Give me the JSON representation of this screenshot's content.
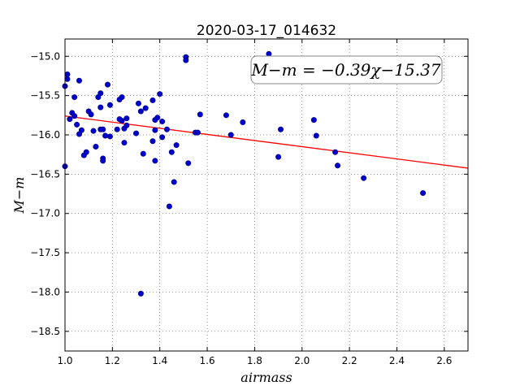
{
  "chart_data": {
    "type": "scatter",
    "title": "2020-03-17_014632",
    "xlabel": "airmass",
    "ylabel": "M−m",
    "xlim": [
      1.0,
      2.7
    ],
    "ylim": [
      -18.75,
      -14.78
    ],
    "xticks": [
      1.0,
      1.2,
      1.4,
      1.6,
      1.8,
      2.0,
      2.2,
      2.4,
      2.6
    ],
    "xtick_labels": [
      "1.0",
      "1.2",
      "1.4",
      "1.6",
      "1.8",
      "2.0",
      "2.2",
      "2.4",
      "2.6"
    ],
    "yticks": [
      -15.0,
      -15.5,
      -16.0,
      -16.5,
      -17.0,
      -17.5,
      -18.0,
      -18.5
    ],
    "ytick_labels": [
      "−15.0",
      "−15.5",
      "−16.0",
      "−16.5",
      "−17.0",
      "−17.5",
      "−18.0",
      "−18.5"
    ],
    "grid": true,
    "annotation": "M−m = −0.39χ−15.37",
    "fit": {
      "slope": -0.39,
      "intercept": -15.37,
      "color": "#ff0000"
    },
    "point_color": "#0000cc",
    "points": [
      [
        1.0,
        -15.38
      ],
      [
        1.01,
        -15.23
      ],
      [
        1.01,
        -15.29
      ],
      [
        1.0,
        -16.4
      ],
      [
        1.02,
        -15.8
      ],
      [
        1.03,
        -15.72
      ],
      [
        1.04,
        -15.76
      ],
      [
        1.04,
        -15.52
      ],
      [
        1.05,
        -15.87
      ],
      [
        1.06,
        -15.99
      ],
      [
        1.06,
        -15.31
      ],
      [
        1.07,
        -15.94
      ],
      [
        1.08,
        -16.26
      ],
      [
        1.09,
        -16.22
      ],
      [
        1.1,
        -15.7
      ],
      [
        1.11,
        -15.74
      ],
      [
        1.12,
        -15.95
      ],
      [
        1.13,
        -16.15
      ],
      [
        1.14,
        -15.52
      ],
      [
        1.15,
        -15.47
      ],
      [
        1.15,
        -15.65
      ],
      [
        1.15,
        -15.93
      ],
      [
        1.16,
        -16.3
      ],
      [
        1.16,
        -16.33
      ],
      [
        1.16,
        -15.93
      ],
      [
        1.17,
        -16.01
      ],
      [
        1.18,
        -15.36
      ],
      [
        1.19,
        -15.62
      ],
      [
        1.19,
        -16.02
      ],
      [
        1.22,
        -15.93
      ],
      [
        1.23,
        -15.55
      ],
      [
        1.24,
        -15.52
      ],
      [
        1.24,
        -15.82
      ],
      [
        1.23,
        -15.8
      ],
      [
        1.25,
        -16.1
      ],
      [
        1.25,
        -15.92
      ],
      [
        1.26,
        -15.79
      ],
      [
        1.26,
        -15.88
      ],
      [
        1.3,
        -15.98
      ],
      [
        1.31,
        -15.6
      ],
      [
        1.32,
        -15.7
      ],
      [
        1.33,
        -16.24
      ],
      [
        1.34,
        -15.66
      ],
      [
        1.32,
        -18.02
      ],
      [
        1.37,
        -15.56
      ],
      [
        1.37,
        -16.08
      ],
      [
        1.38,
        -15.81
      ],
      [
        1.38,
        -15.94
      ],
      [
        1.38,
        -16.33
      ],
      [
        1.39,
        -15.78
      ],
      [
        1.4,
        -15.48
      ],
      [
        1.41,
        -15.83
      ],
      [
        1.41,
        -16.03
      ],
      [
        1.43,
        -15.93
      ],
      [
        1.44,
        -16.91
      ],
      [
        1.45,
        -16.22
      ],
      [
        1.46,
        -16.6
      ],
      [
        1.47,
        -16.13
      ],
      [
        1.51,
        -15.01
      ],
      [
        1.51,
        -15.05
      ],
      [
        1.52,
        -16.36
      ],
      [
        1.55,
        -15.97
      ],
      [
        1.56,
        -15.97
      ],
      [
        1.57,
        -15.74
      ],
      [
        1.68,
        -15.75
      ],
      [
        1.7,
        -16.0
      ],
      [
        1.75,
        -15.84
      ],
      [
        1.86,
        -14.97
      ],
      [
        1.9,
        -16.28
      ],
      [
        1.91,
        -15.93
      ],
      [
        2.05,
        -15.81
      ],
      [
        2.06,
        -16.01
      ],
      [
        2.14,
        -16.22
      ],
      [
        2.15,
        -16.39
      ],
      [
        2.26,
        -16.55
      ],
      [
        2.51,
        -16.74
      ]
    ]
  }
}
